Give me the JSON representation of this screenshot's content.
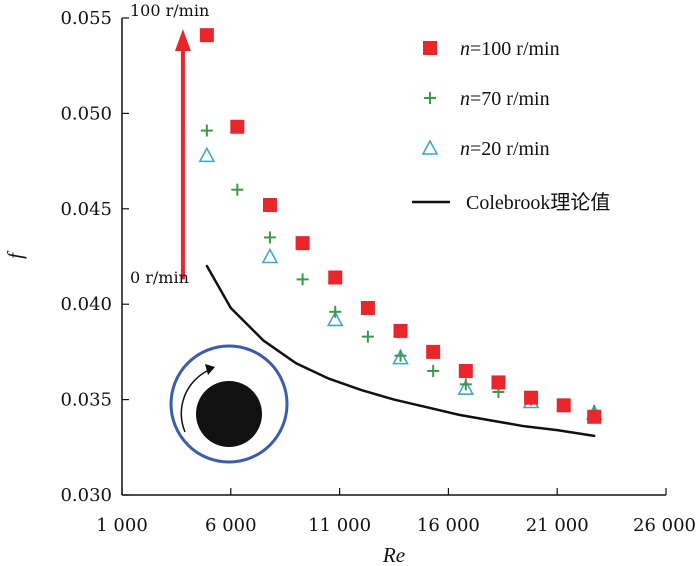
{
  "chart_data": {
    "type": "scatter",
    "title": "",
    "xlabel": "Re",
    "ylabel": "f",
    "xlim": [
      1000,
      26000
    ],
    "ylim": [
      0.03,
      0.055
    ],
    "x_ticks": [
      1000,
      6000,
      11000,
      16000,
      21000,
      26000
    ],
    "x_tick_labels": [
      "1 000",
      "6 000",
      "11 000",
      "16 000",
      "21 000",
      "26 000"
    ],
    "y_ticks": [
      0.03,
      0.035,
      0.04,
      0.045,
      0.05,
      0.055
    ],
    "y_tick_labels": [
      "0.030",
      "0.035",
      "0.040",
      "0.045",
      "0.050",
      "0.055"
    ],
    "series": [
      {
        "name_prefix": "n",
        "name_suffix": "=100 r/min",
        "marker": "square",
        "color": "#e8262b",
        "x": [
          4900,
          6300,
          7800,
          9300,
          10800,
          12300,
          13800,
          15300,
          16800,
          18300,
          19800,
          21300,
          22700
        ],
        "y": [
          0.0541,
          0.0493,
          0.0452,
          0.0432,
          0.0414,
          0.0398,
          0.0386,
          0.0375,
          0.0365,
          0.0359,
          0.0351,
          0.0347,
          0.0341
        ]
      },
      {
        "name_prefix": "n",
        "name_suffix": "=70 r/min",
        "marker": "plus",
        "color": "#3a9a4a",
        "x": [
          4900,
          6300,
          7800,
          9300,
          10800,
          12300,
          13800,
          15300,
          16800,
          18300,
          19800,
          21300,
          22700
        ],
        "y": [
          0.0491,
          0.046,
          0.0435,
          0.0413,
          0.0396,
          0.0383,
          0.0373,
          0.0365,
          0.0358,
          0.0354,
          0.035,
          0.0347,
          0.0344
        ]
      },
      {
        "name_prefix": "n",
        "name_suffix": "=20 r/min",
        "marker": "triangle",
        "color": "#3fa7c9",
        "x": [
          4900,
          7800,
          10800,
          13800,
          16800,
          19800,
          22700
        ],
        "y": [
          0.0478,
          0.0425,
          0.0392,
          0.0372,
          0.0356,
          0.0349,
          0.0343
        ]
      },
      {
        "name": "Colebrook理论值",
        "marker": "line",
        "color": "#111111",
        "x": [
          4900,
          6000,
          7500,
          9000,
          10500,
          12000,
          13500,
          15000,
          16500,
          18000,
          19500,
          21000,
          22700
        ],
        "y": [
          0.042,
          0.0398,
          0.0381,
          0.0369,
          0.0361,
          0.0355,
          0.035,
          0.0346,
          0.0342,
          0.0339,
          0.0336,
          0.0334,
          0.0331
        ]
      }
    ],
    "annotations": {
      "arrow_top_label": "100 r/min",
      "arrow_bottom_label": "0 r/min",
      "arrow_color": "#e8262b",
      "arrow_x": 3800,
      "arrow_y_from": 0.0413,
      "arrow_y_to": 0.0541,
      "inset_ring_color": "#3a5ea8",
      "inset_core_color": "#111111"
    },
    "legend_position": "top-right"
  }
}
